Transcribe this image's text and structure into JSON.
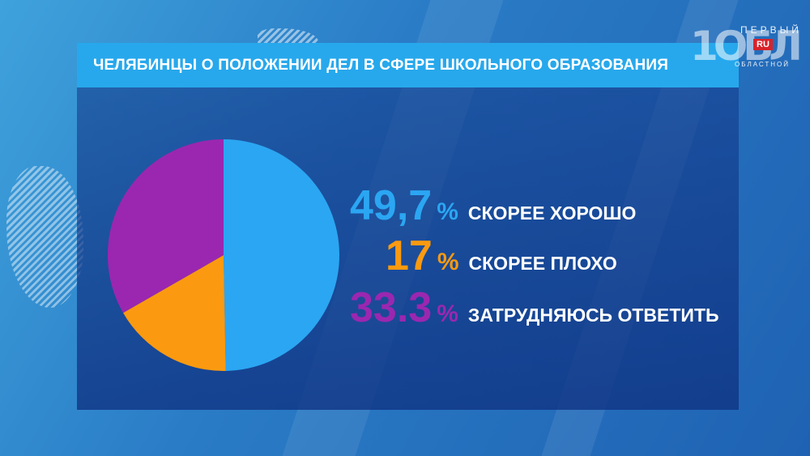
{
  "title": "ЧЕЛЯБИНЦЫ О ПОЛОЖЕНИИ ДЕЛ В СФЕРЕ ШКОЛЬНОГО ОБРАЗОВАНИЯ",
  "logo": {
    "top": "ПЕРВЫЙ",
    "number": "1ОБЛ",
    "badge": "RU",
    "bottom": "ОБЛАСТНОЙ"
  },
  "chart_data": {
    "type": "pie",
    "title": "ЧЕЛЯБИНЦЫ О ПОЛОЖЕНИИ ДЕЛ В СФЕРЕ ШКОЛЬНОГО ОБРАЗОВАНИЯ",
    "slices": [
      {
        "label": "СКОРЕЕ ХОРОШО",
        "value": 49.7,
        "display": "49,7",
        "color": "#2ba6f2"
      },
      {
        "label": "СКОРЕЕ ПЛОХО",
        "value": 17,
        "display": "17",
        "color": "#fb9a10"
      },
      {
        "label": "ЗАТРУДНЯЮСЬ ОТВЕТИТЬ",
        "value": 33.3,
        "display": "33.3",
        "color": "#9b27b0"
      }
    ],
    "unit": "%"
  }
}
